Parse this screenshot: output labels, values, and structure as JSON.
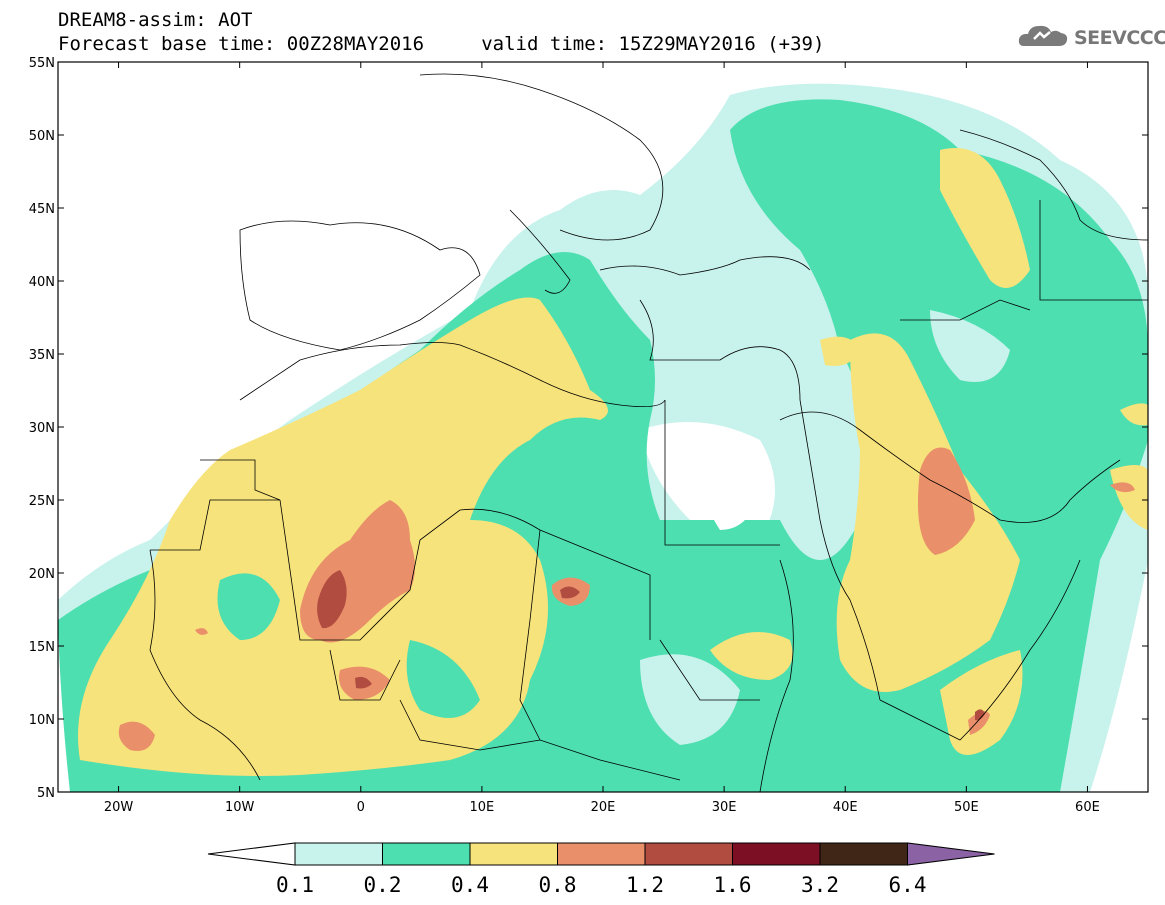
{
  "header": {
    "line1": "DREAM8-assim: AOT",
    "line2": "Forecast base time: 00Z28MAY2016     valid time: 15Z29MAY2016 (+39)"
  },
  "logo": {
    "text": "SEEVCCC",
    "icon": "cloud-icon"
  },
  "map": {
    "lon_range": [
      -25,
      65
    ],
    "lat_range": [
      5,
      55
    ],
    "lat_labels": [
      "55N",
      "50N",
      "45N",
      "40N",
      "35N",
      "30N",
      "25N",
      "20N",
      "15N",
      "10N",
      "5N"
    ],
    "lon_labels": [
      "20W",
      "10W",
      "0",
      "10E",
      "20E",
      "30E",
      "40E",
      "50E",
      "60E"
    ]
  },
  "legend": {
    "colors": [
      "#ffffff",
      "#c8f2ec",
      "#4ddfb0",
      "#f7e37b",
      "#e9906a",
      "#b14c40",
      "#7d0f24",
      "#3f2617",
      "#8b63a5"
    ],
    "labels": [
      "0.1",
      "0.2",
      "0.4",
      "0.8",
      "1.2",
      "1.6",
      "3.2",
      "6.4"
    ]
  }
}
